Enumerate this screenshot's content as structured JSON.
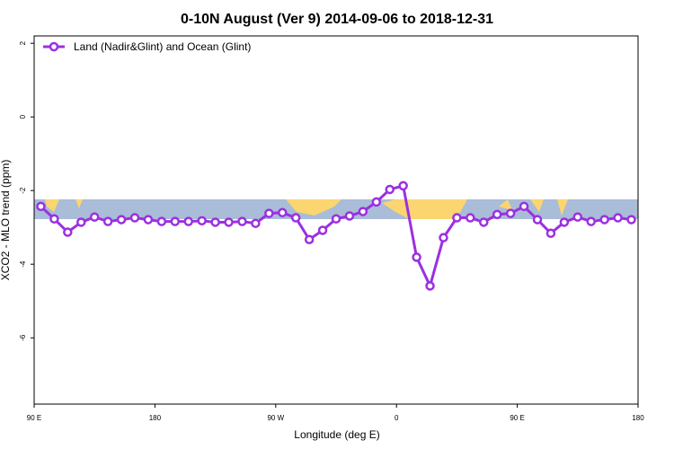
{
  "chart_data": {
    "type": "line",
    "title": "0-10N August (Ver 9)   2014-09-06 to 2018-12-31",
    "x_label": "Longitude (deg E)",
    "y_label": "XCO2 - MLO trend (ppm)",
    "xlim": [
      90,
      540
    ],
    "ylim": [
      -7.8,
      2.2
    ],
    "xticks": [
      {
        "value": 90,
        "label": "90 E"
      },
      180,
      {
        "value": 270,
        "label": "90 W"
      },
      {
        "value": 360,
        "label": "0"
      },
      {
        "value": 450,
        "label": "90 E"
      },
      {
        "value": 540,
        "label": "180"
      }
    ],
    "yticks": [
      2,
      0,
      -2,
      -4,
      -6
    ],
    "legend": "top-left",
    "x": [
      95,
      105,
      115,
      125,
      135,
      145,
      155,
      165,
      175,
      185,
      195,
      205,
      215,
      225,
      235,
      245,
      255,
      265,
      275,
      285,
      295,
      305,
      315,
      325,
      335,
      345,
      355,
      365,
      375,
      385,
      395,
      405,
      415,
      425,
      435,
      445,
      455,
      465,
      475,
      485,
      495,
      505,
      515,
      525,
      535
    ],
    "series": [
      {
        "name": "Land (Nadir&Glint) and Ocean (Glint)",
        "color": "#9b30e0",
        "values": [
          -2.43,
          -2.77,
          -3.13,
          -2.86,
          -2.72,
          -2.84,
          -2.79,
          -2.74,
          -2.79,
          -2.84,
          -2.84,
          -2.84,
          -2.82,
          -2.86,
          -2.86,
          -2.84,
          -2.89,
          -2.62,
          -2.6,
          -2.74,
          -3.33,
          -3.08,
          -2.77,
          -2.69,
          -2.57,
          -2.31,
          -1.97,
          -1.87,
          -3.81,
          -4.59,
          -3.28,
          -2.74,
          -2.74,
          -2.86,
          -2.65,
          -2.62,
          -2.43,
          -2.79,
          -3.16,
          -2.86,
          -2.72,
          -2.84,
          -2.79,
          -2.74,
          -2.79
        ]
      }
    ]
  }
}
